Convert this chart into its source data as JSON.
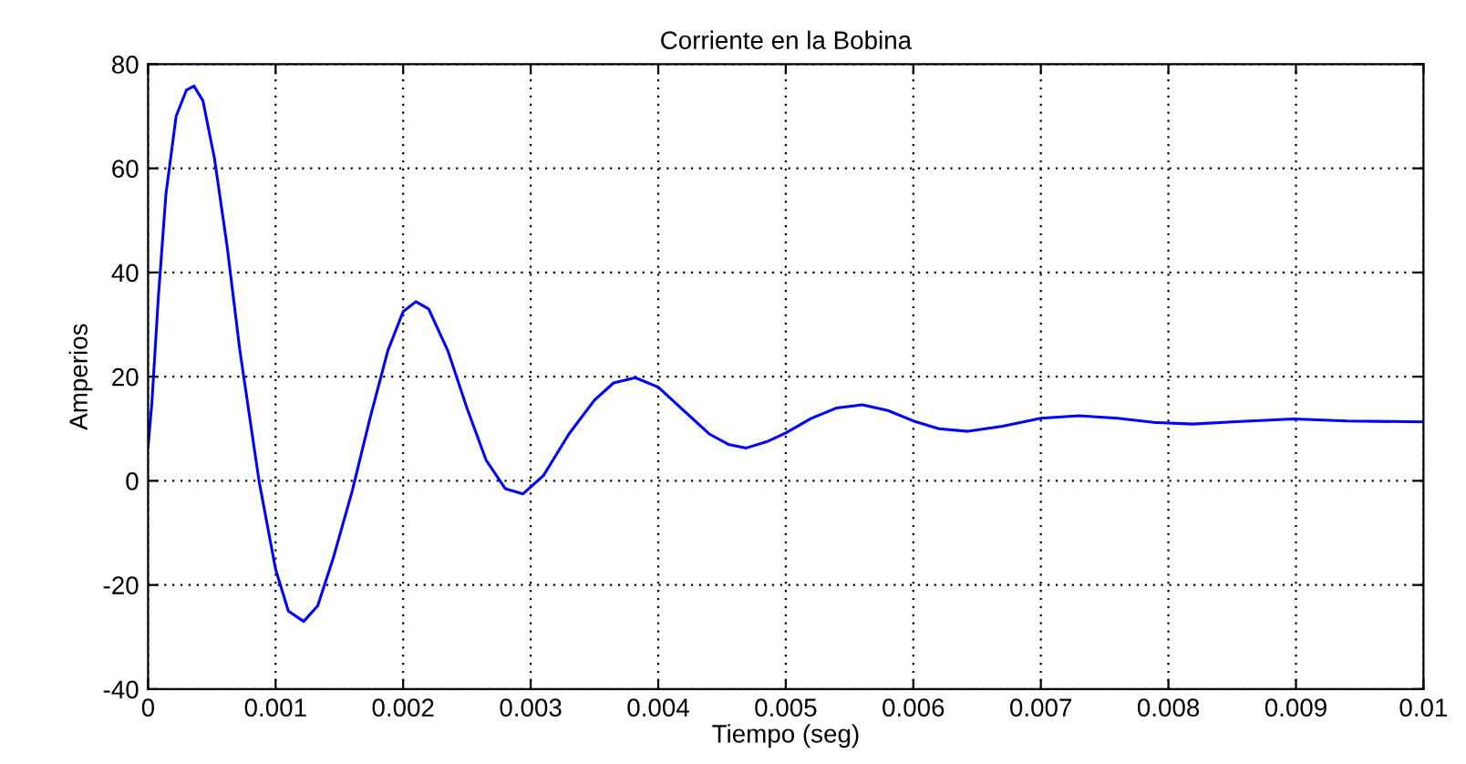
{
  "chart_data": {
    "type": "line",
    "title": "Corriente en la Bobina",
    "xlabel": "Tiempo (seg)",
    "ylabel": "Amperios",
    "x": [
      0,
      3e-05,
      8e-05,
      0.00014,
      0.00022,
      0.0003,
      0.00036,
      0.00043,
      0.00052,
      0.00062,
      0.00072,
      0.00087,
      0.001,
      0.0011,
      0.00122,
      0.00133,
      0.00145,
      0.0016,
      0.00174,
      0.00188,
      0.002,
      0.0021,
      0.0022,
      0.00235,
      0.0025,
      0.00265,
      0.0028,
      0.00294,
      0.0031,
      0.0033,
      0.0035,
      0.00365,
      0.00382,
      0.004,
      0.0042,
      0.0044,
      0.00455,
      0.00469,
      0.00485,
      0.005,
      0.0052,
      0.0054,
      0.0056,
      0.0058,
      0.006,
      0.0062,
      0.00643,
      0.0067,
      0.007,
      0.0073,
      0.0076,
      0.0079,
      0.00819,
      0.0085,
      0.00898,
      0.0094,
      0.01
    ],
    "series": [
      {
        "color": "#0000ff",
        "values": [
          6.5,
          15,
          35,
          55,
          70,
          75,
          75.8,
          73,
          62,
          45,
          25,
          0,
          -17,
          -25,
          -27,
          -24,
          -15,
          -2,
          12,
          25,
          32.5,
          34.4,
          33,
          25,
          14,
          4,
          -1.5,
          -2.5,
          1,
          9,
          15.5,
          18.8,
          19.8,
          18,
          13.5,
          9,
          7,
          6.3,
          7.5,
          9.2,
          12,
          14,
          14.6,
          13.5,
          11.5,
          10,
          9.5,
          10.5,
          12,
          12.5,
          12,
          11.2,
          10.9,
          11.3,
          11.9,
          11.5,
          11.3
        ]
      }
    ],
    "xlim": [
      0,
      0.01
    ],
    "xticks": [
      0,
      0.001,
      0.002,
      0.003,
      0.004,
      0.005,
      0.006,
      0.007,
      0.008,
      0.009,
      0.01
    ],
    "ylim": [
      -40,
      80
    ],
    "yticks": [
      -40,
      -20,
      0,
      20,
      40,
      60,
      80
    ],
    "grid": true,
    "line_style": "solid",
    "marker": "none"
  }
}
